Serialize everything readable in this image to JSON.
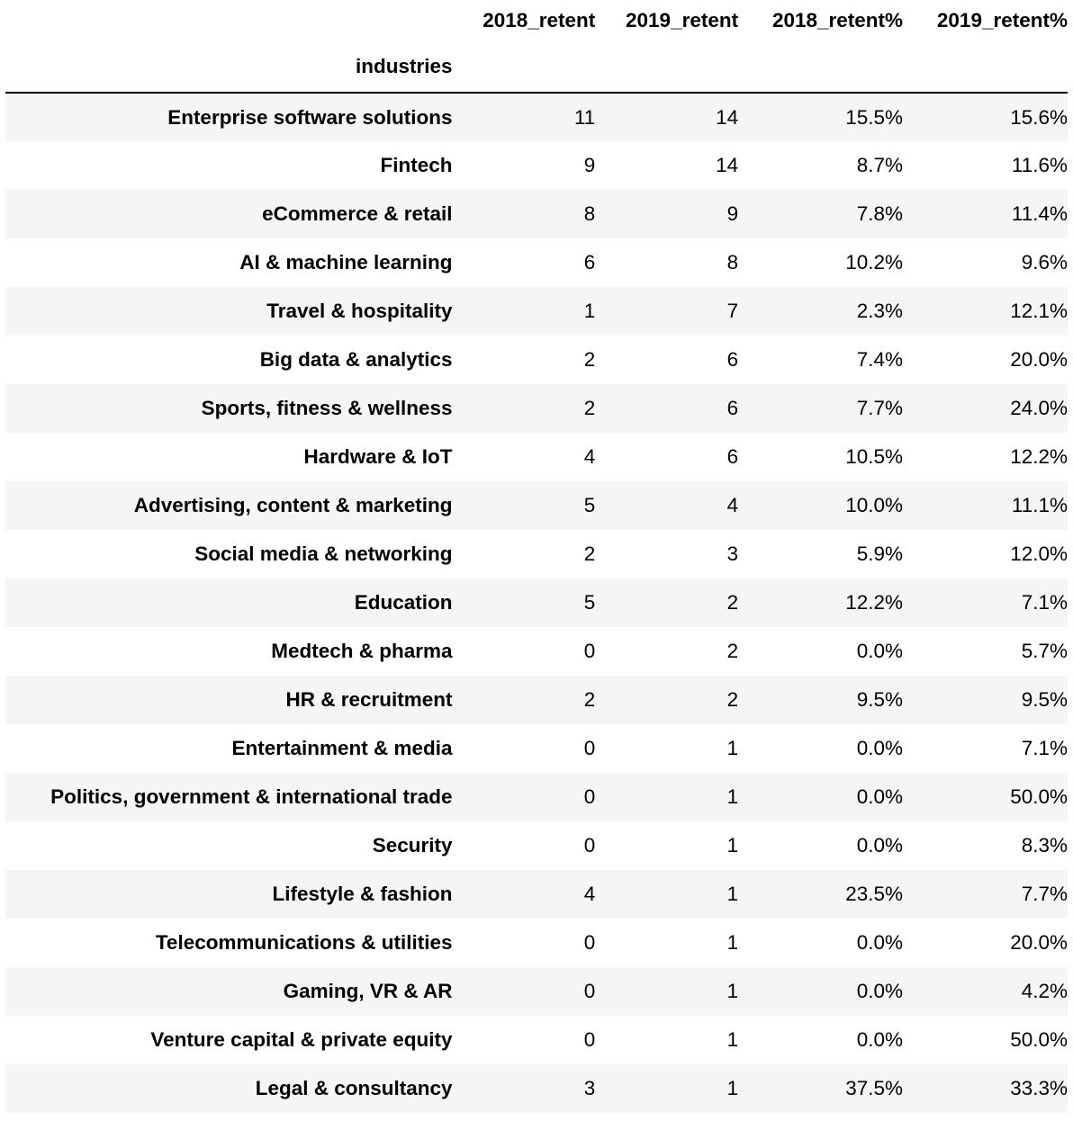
{
  "table": {
    "index_name": "industries",
    "columns": [
      "2018_retent",
      "2019_retent",
      "2018_retent%",
      "2019_retent%"
    ],
    "rows": [
      {
        "label": "Enterprise software solutions",
        "values": [
          "11",
          "14",
          "15.5%",
          "15.6%"
        ]
      },
      {
        "label": "Fintech",
        "values": [
          "9",
          "14",
          "8.7%",
          "11.6%"
        ]
      },
      {
        "label": "eCommerce & retail",
        "values": [
          "8",
          "9",
          "7.8%",
          "11.4%"
        ]
      },
      {
        "label": "AI & machine learning",
        "values": [
          "6",
          "8",
          "10.2%",
          "9.6%"
        ]
      },
      {
        "label": "Travel & hospitality",
        "values": [
          "1",
          "7",
          "2.3%",
          "12.1%"
        ]
      },
      {
        "label": "Big data & analytics",
        "values": [
          "2",
          "6",
          "7.4%",
          "20.0%"
        ]
      },
      {
        "label": "Sports, fitness & wellness",
        "values": [
          "2",
          "6",
          "7.7%",
          "24.0%"
        ]
      },
      {
        "label": "Hardware & IoT",
        "values": [
          "4",
          "6",
          "10.5%",
          "12.2%"
        ]
      },
      {
        "label": "Advertising, content & marketing",
        "values": [
          "5",
          "4",
          "10.0%",
          "11.1%"
        ]
      },
      {
        "label": "Social media & networking",
        "values": [
          "2",
          "3",
          "5.9%",
          "12.0%"
        ]
      },
      {
        "label": "Education",
        "values": [
          "5",
          "2",
          "12.2%",
          "7.1%"
        ]
      },
      {
        "label": "Medtech & pharma",
        "values": [
          "0",
          "2",
          "0.0%",
          "5.7%"
        ]
      },
      {
        "label": "HR & recruitment",
        "values": [
          "2",
          "2",
          "9.5%",
          "9.5%"
        ]
      },
      {
        "label": "Entertainment & media",
        "values": [
          "0",
          "1",
          "0.0%",
          "7.1%"
        ]
      },
      {
        "label": "Politics, government & international trade",
        "values": [
          "0",
          "1",
          "0.0%",
          "50.0%"
        ]
      },
      {
        "label": "Security",
        "values": [
          "0",
          "1",
          "0.0%",
          "8.3%"
        ]
      },
      {
        "label": "Lifestyle & fashion",
        "values": [
          "4",
          "1",
          "23.5%",
          "7.7%"
        ]
      },
      {
        "label": "Telecommunications & utilities",
        "values": [
          "0",
          "1",
          "0.0%",
          "20.0%"
        ]
      },
      {
        "label": "Gaming, VR & AR",
        "values": [
          "0",
          "1",
          "0.0%",
          "4.2%"
        ]
      },
      {
        "label": "Venture capital & private equity",
        "values": [
          "0",
          "1",
          "0.0%",
          "50.0%"
        ]
      },
      {
        "label": "Legal & consultancy",
        "values": [
          "3",
          "1",
          "37.5%",
          "33.3%"
        ]
      }
    ]
  },
  "colors": {
    "stripe": "#f5f5f5",
    "background": "#ffffff",
    "text": "#000000",
    "rule": "#000000"
  }
}
